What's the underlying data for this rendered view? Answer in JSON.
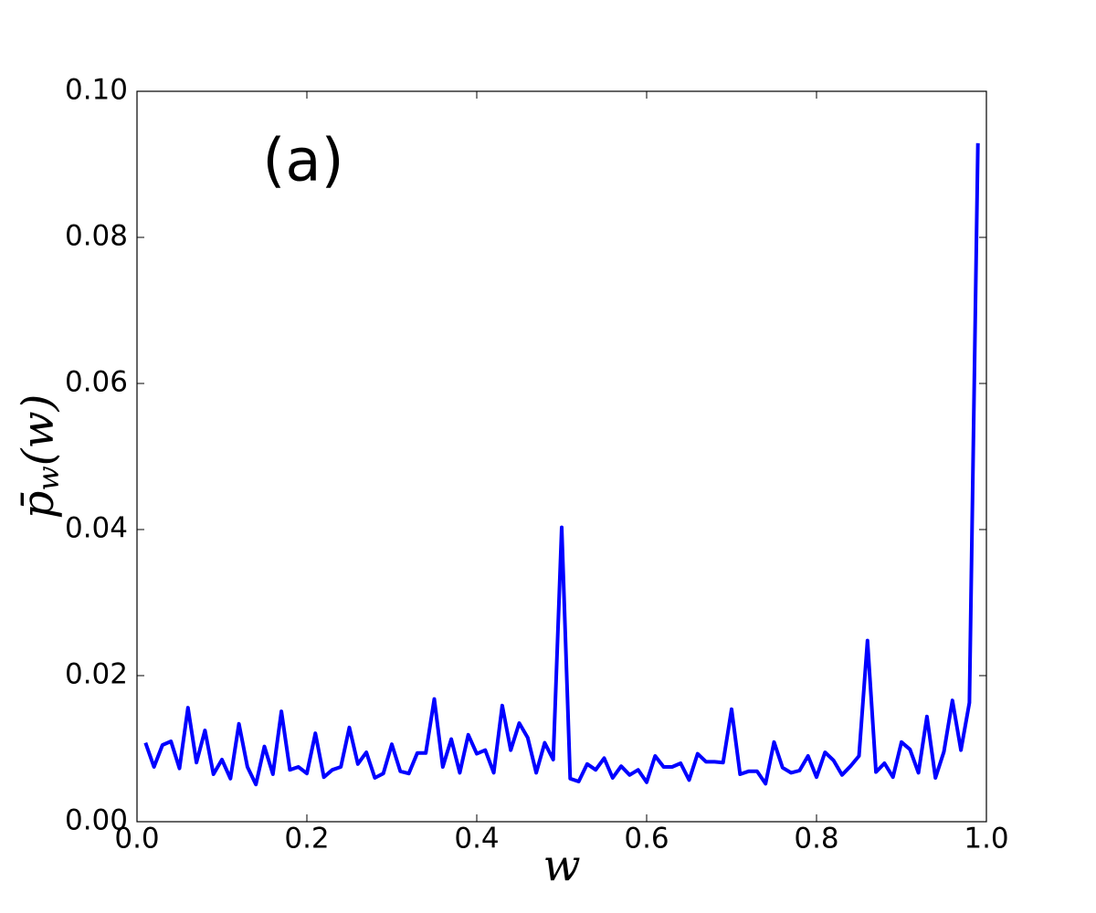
{
  "chart_data": {
    "type": "line",
    "annotation": "(a)",
    "xlabel": "w",
    "ylabel": {
      "base": "p̄",
      "sub": "w",
      "arg": "(w)"
    },
    "x": [
      0.01,
      0.02,
      0.03,
      0.04,
      0.05,
      0.06,
      0.07,
      0.08,
      0.09,
      0.1,
      0.11,
      0.12,
      0.13,
      0.14,
      0.15,
      0.16,
      0.17,
      0.18,
      0.19,
      0.2,
      0.21,
      0.22,
      0.23,
      0.24,
      0.25,
      0.26,
      0.27,
      0.28,
      0.29,
      0.3,
      0.31,
      0.32,
      0.33,
      0.34,
      0.35,
      0.36,
      0.37,
      0.38,
      0.39,
      0.4,
      0.41,
      0.42,
      0.43,
      0.44,
      0.45,
      0.46,
      0.47,
      0.48,
      0.49,
      0.5,
      0.51,
      0.52,
      0.53,
      0.54,
      0.55,
      0.56,
      0.57,
      0.58,
      0.59,
      0.6,
      0.61,
      0.62,
      0.63,
      0.64,
      0.65,
      0.66,
      0.67,
      0.68,
      0.69,
      0.7,
      0.71,
      0.72,
      0.73,
      0.74,
      0.75,
      0.76,
      0.77,
      0.78,
      0.79,
      0.8,
      0.81,
      0.82,
      0.83,
      0.84,
      0.85,
      0.86,
      0.87,
      0.88,
      0.89,
      0.9,
      0.91,
      0.92,
      0.93,
      0.94,
      0.95,
      0.96,
      0.97,
      0.98,
      0.99
    ],
    "series": [
      {
        "color": "#0000ff",
        "values": [
          0.0108,
          0.0075,
          0.0105,
          0.011,
          0.0073,
          0.0156,
          0.0081,
          0.0125,
          0.0065,
          0.0085,
          0.0059,
          0.0134,
          0.0075,
          0.0051,
          0.0103,
          0.0065,
          0.0151,
          0.0071,
          0.0075,
          0.0066,
          0.0121,
          0.0061,
          0.0071,
          0.0075,
          0.0129,
          0.0079,
          0.0095,
          0.006,
          0.0066,
          0.0106,
          0.0069,
          0.0066,
          0.0094,
          0.0094,
          0.0168,
          0.0075,
          0.0113,
          0.0067,
          0.0119,
          0.0093,
          0.0098,
          0.0067,
          0.0159,
          0.0098,
          0.0135,
          0.0115,
          0.0067,
          0.0108,
          0.0085,
          0.0403,
          0.0059,
          0.0055,
          0.0079,
          0.0071,
          0.0087,
          0.006,
          0.0076,
          0.0064,
          0.0071,
          0.0054,
          0.009,
          0.0075,
          0.0075,
          0.008,
          0.0057,
          0.0093,
          0.0082,
          0.0082,
          0.0081,
          0.0154,
          0.0065,
          0.0069,
          0.0069,
          0.0052,
          0.0109,
          0.0074,
          0.0067,
          0.007,
          0.009,
          0.0061,
          0.0095,
          0.0084,
          0.0064,
          0.0076,
          0.009,
          0.0248,
          0.0068,
          0.008,
          0.0061,
          0.0109,
          0.0099,
          0.0067,
          0.0144,
          0.006,
          0.0096,
          0.0166,
          0.0098,
          0.0163,
          0.0929
        ]
      }
    ],
    "xlim": [
      0,
      1
    ],
    "ylim": [
      0,
      0.1
    ],
    "xticks": [
      {
        "value": 0,
        "label": "0.0"
      },
      0.2,
      0.4,
      0.6,
      0.8,
      {
        "value": 1,
        "label": "1.0"
      }
    ],
    "yticks": [
      {
        "value": 0,
        "label": "0.00"
      },
      {
        "value": 0.02,
        "label": "0.02"
      },
      {
        "value": 0.04,
        "label": "0.04"
      },
      {
        "value": 0.06,
        "label": "0.06"
      },
      {
        "value": 0.08,
        "label": "0.08"
      },
      {
        "value": 0.1,
        "label": "0.10"
      }
    ]
  }
}
